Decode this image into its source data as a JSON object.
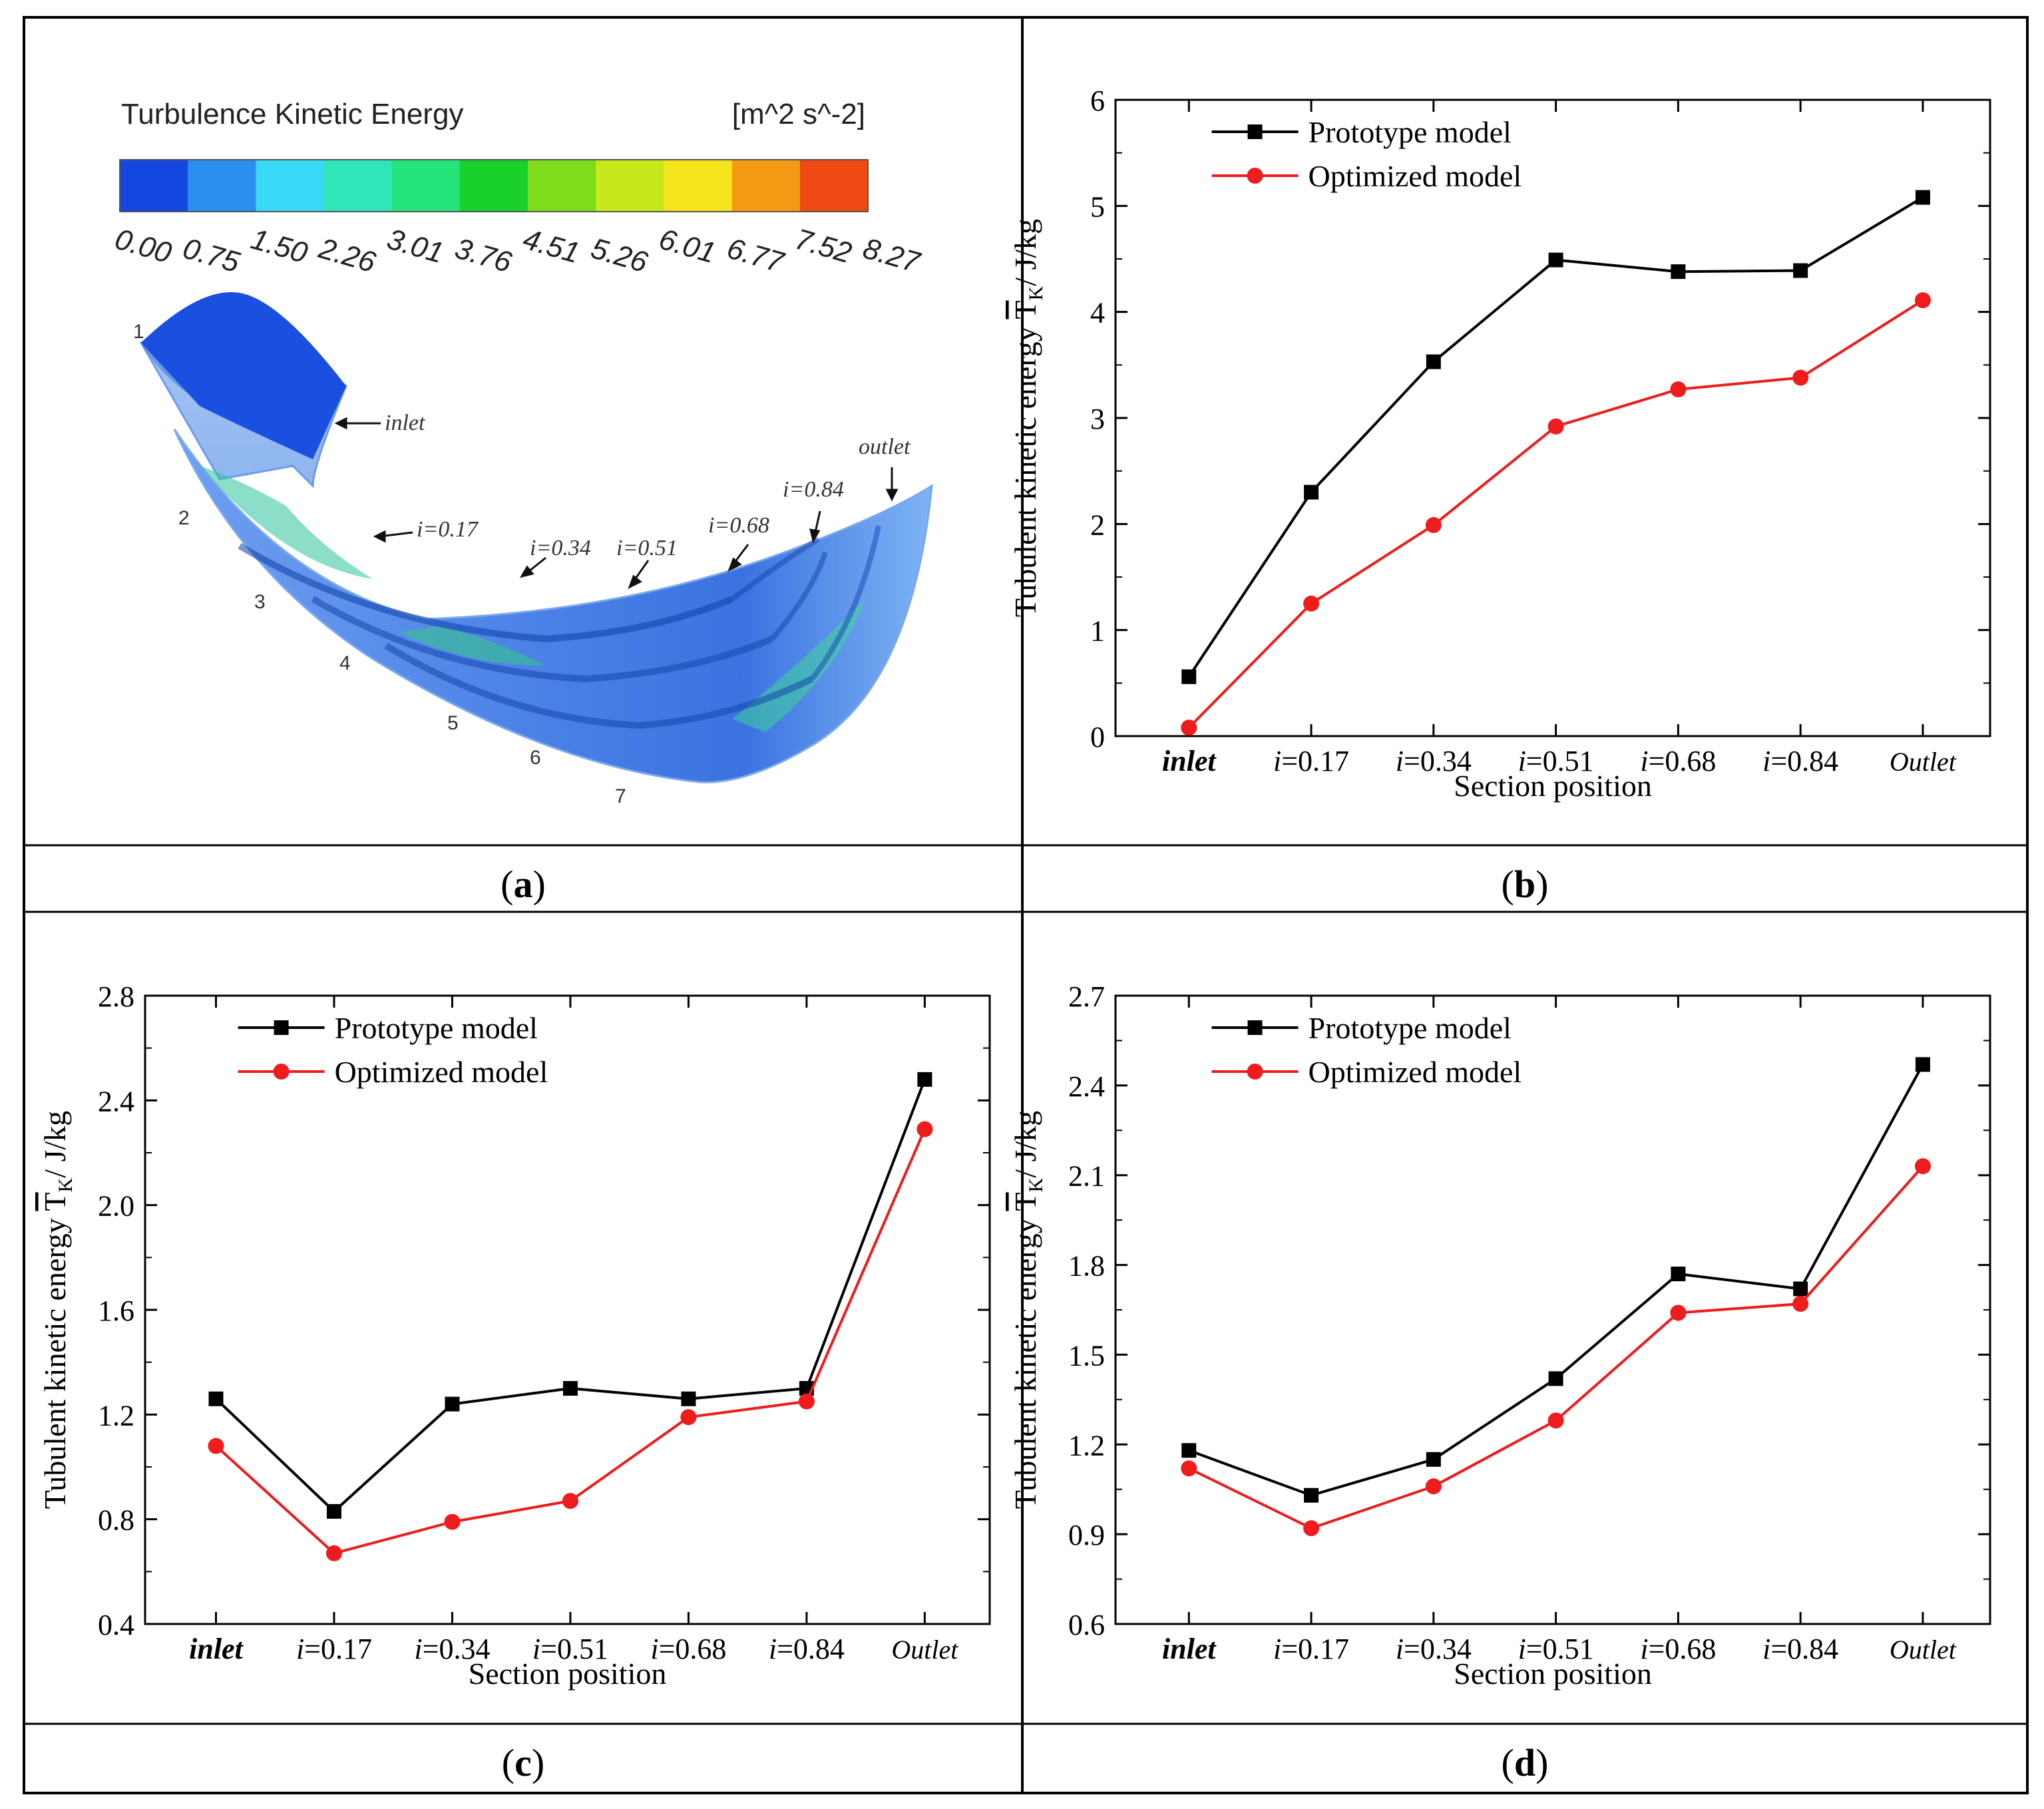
{
  "panel_labels": [
    "a",
    "b",
    "c",
    "d"
  ],
  "panel_a": {
    "colorbar_title": "Turbulence Kinetic Energy",
    "colorbar_unit": "[m^2 s^-2]",
    "colorbar_ticks": [
      "0.00",
      "0.75",
      "1.50",
      "2.26",
      "3.01",
      "3.76",
      "4.51",
      "5.26",
      "6.01",
      "6.77",
      "7.52",
      "8.27"
    ],
    "colorbar_colors": [
      "#1446e0",
      "#2b8ff0",
      "#39d8f6",
      "#2fe6b8",
      "#23e47a",
      "#1ad02a",
      "#7edc1c",
      "#c6e81c",
      "#f6e41a",
      "#f59a14",
      "#f04a14"
    ],
    "sections": [
      "1",
      "2",
      "3",
      "4",
      "5",
      "6",
      "7"
    ],
    "annotations": [
      "inlet",
      "outlet",
      "i=0.17",
      "i=0.34",
      "i=0.51",
      "i=0.68",
      "i=0.84"
    ]
  },
  "chart_data": [
    {
      "id": "b",
      "type": "line",
      "categories": [
        "inlet",
        "i=0.17",
        "i=0.34",
        "i=0.51",
        "i=0.68",
        "i=0.84",
        "Outlet"
      ],
      "series": [
        {
          "name": "Prototype model",
          "color": "#000000",
          "marker": "square",
          "values": [
            0.56,
            2.3,
            3.53,
            4.49,
            4.38,
            4.39,
            5.08
          ]
        },
        {
          "name": "Optimized model",
          "color": "#ee1c1c",
          "marker": "circle",
          "values": [
            0.08,
            1.25,
            1.99,
            2.92,
            3.27,
            3.38,
            4.11
          ]
        }
      ],
      "xlabel": "Section position",
      "ylabel": "Tubulent kinetic energy",
      "ylabel_symbol": "T",
      "ylabel_subscript": "K",
      "ylabel_unit": "/ J/kg",
      "ylim": [
        0,
        6
      ],
      "yticks": [
        "0",
        "1",
        "2",
        "3",
        "4",
        "5",
        "6"
      ]
    },
    {
      "id": "c",
      "type": "line",
      "categories": [
        "inlet",
        "i=0.17",
        "i=0.34",
        "i=0.51",
        "i=0.68",
        "i=0.84",
        "Outlet"
      ],
      "series": [
        {
          "name": "Prototype model",
          "color": "#000000",
          "marker": "square",
          "values": [
            1.26,
            0.83,
            1.24,
            1.3,
            1.26,
            1.3,
            2.48
          ]
        },
        {
          "name": "Optimized model",
          "color": "#ee1c1c",
          "marker": "circle",
          "values": [
            1.08,
            0.67,
            0.79,
            0.87,
            1.19,
            1.25,
            2.29
          ]
        }
      ],
      "xlabel": "Section position",
      "ylabel": "Tubulent kinetic energy",
      "ylabel_symbol": "T",
      "ylabel_subscript": "K",
      "ylabel_unit": "/ J/kg",
      "ylim": [
        0.4,
        2.8
      ],
      "yticks": [
        "0.4",
        "0.8",
        "1.2",
        "1.6",
        "2.0",
        "2.4",
        "2.8"
      ]
    },
    {
      "id": "d",
      "type": "line",
      "categories": [
        "inlet",
        "i=0.17",
        "i=0.34",
        "i=0.51",
        "i=0.68",
        "i=0.84",
        "Outlet"
      ],
      "series": [
        {
          "name": "Prototype model",
          "color": "#000000",
          "marker": "square",
          "values": [
            1.18,
            1.03,
            1.15,
            1.42,
            1.77,
            1.72,
            2.47
          ]
        },
        {
          "name": "Optimized model",
          "color": "#ee1c1c",
          "marker": "circle",
          "values": [
            1.12,
            0.92,
            1.06,
            1.28,
            1.64,
            1.67,
            2.13
          ]
        }
      ],
      "xlabel": "Section position",
      "ylabel": "Tubulent kinetic energy",
      "ylabel_symbol": "T",
      "ylabel_subscript": "K",
      "ylabel_unit": "/ J/kg",
      "ylim": [
        0.6,
        2.7
      ],
      "yticks": [
        "0.6",
        "0.9",
        "1.2",
        "1.5",
        "1.8",
        "2.1",
        "2.4",
        "2.7"
      ]
    }
  ]
}
